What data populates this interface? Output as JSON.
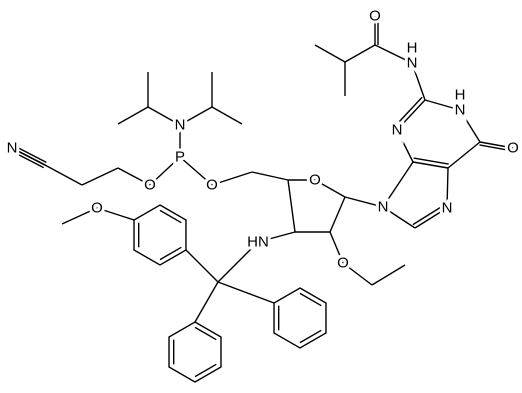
{
  "atoms": [
    "N",
    "O",
    "P",
    "N",
    "O",
    "O",
    "HN",
    "O",
    "O",
    "N",
    "N",
    "N",
    "N",
    "H",
    "N",
    "H",
    "O",
    "O"
  ]
}
